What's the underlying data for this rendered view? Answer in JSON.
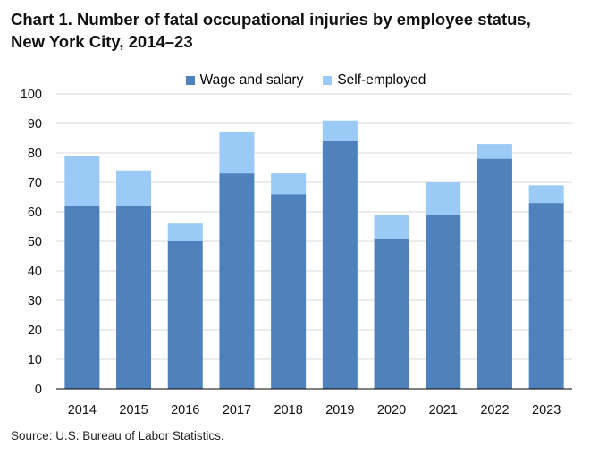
{
  "title_line1": "Chart 1. Number of fatal occupational injuries by employee status,",
  "title_line2": "New York City, 2014–23",
  "source": "Source: U.S. Bureau of Labor Statistics.",
  "colors": {
    "wage": "#4f81bd",
    "self": "#9ccaf7",
    "grid": "#d9d9d9",
    "axis": "#000000"
  },
  "chart_data": {
    "type": "bar",
    "stacked": true,
    "categories": [
      "2014",
      "2015",
      "2016",
      "2017",
      "2018",
      "2019",
      "2020",
      "2021",
      "2022",
      "2023"
    ],
    "series": [
      {
        "name": "Wage and salary",
        "values": [
          62,
          62,
          50,
          73,
          66,
          84,
          51,
          59,
          78,
          63
        ]
      },
      {
        "name": "Self-employed",
        "values": [
          17,
          12,
          6,
          14,
          7,
          7,
          8,
          11,
          5,
          6
        ]
      }
    ],
    "ylim": [
      0,
      100
    ],
    "yticks": [
      "0",
      "10",
      "20",
      "30",
      "40",
      "50",
      "60",
      "70",
      "80",
      "90",
      "100"
    ],
    "grid": true,
    "legend": "top-center",
    "xlabel": "",
    "ylabel": ""
  }
}
